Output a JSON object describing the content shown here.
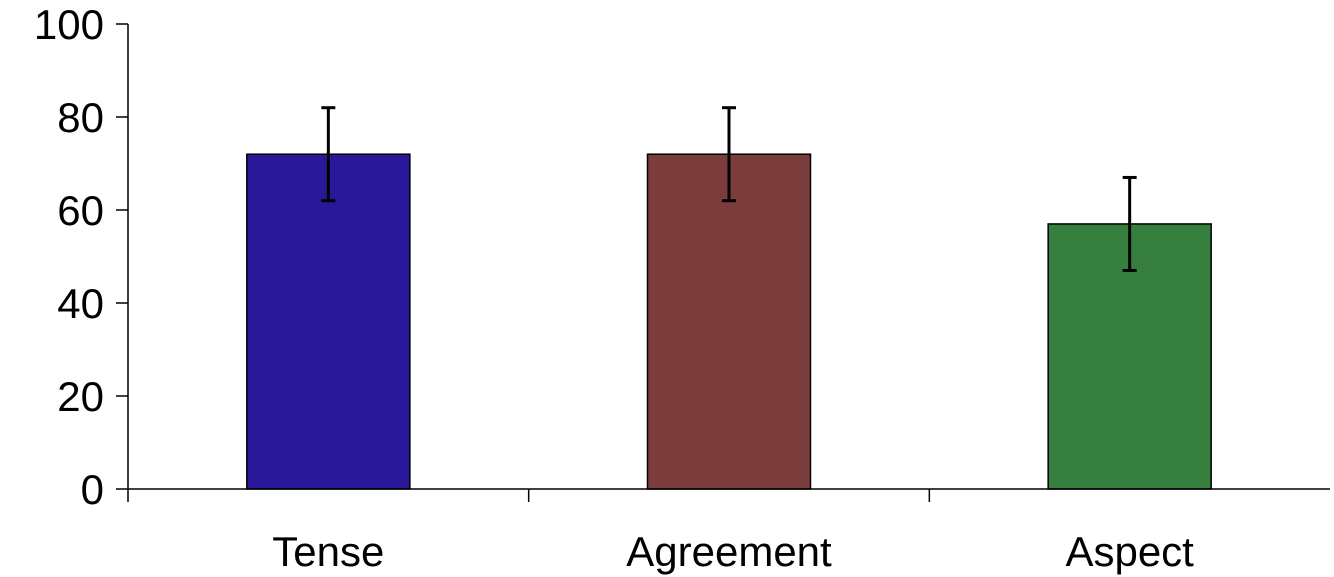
{
  "chart_data": {
    "type": "bar",
    "categories": [
      "Tense",
      "Agreement",
      "Aspect"
    ],
    "values": [
      72,
      72,
      57
    ],
    "errors": [
      10,
      10,
      10
    ],
    "colors": [
      "#29199a",
      "#7a3d3b",
      "#367f3f"
    ],
    "ylim": [
      0,
      100
    ],
    "yticks": [
      "0",
      "20",
      "40",
      "60",
      "80",
      "100"
    ],
    "ytick_values": [
      0,
      20,
      40,
      60,
      80,
      100
    ],
    "grid": false,
    "legend": "none"
  }
}
